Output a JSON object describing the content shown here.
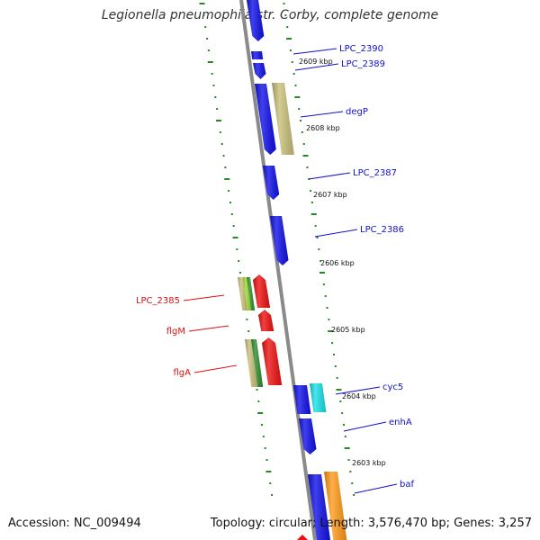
{
  "header": {
    "title": "Legionella pneumophila str. Corby, complete genome"
  },
  "footer": {
    "accession": "Accession: NC_009494",
    "summary": "Topology: circular; Length: 3,576,470 bp; Genes: 3,257"
  },
  "colors": {
    "backbone": "#8c8c8c",
    "tick": "#228b22",
    "gene_blue": "#1010e8",
    "gene_red": "#ee1111",
    "gene_khaki": "#c8c07a",
    "gene_cyan": "#19e0e8",
    "gene_orange": "#ff9a1a",
    "gene_darkgreen": "#2e8b2e",
    "gene_lime": "#9adf2a",
    "label_blue": "#1111cc",
    "label_red": "#dd1111"
  },
  "scale": {
    "unit": "kbp",
    "labels": [
      "2609 kbp",
      "2608 kbp",
      "2607 kbp",
      "2606 kbp",
      "2605 kbp",
      "2604 kbp",
      "2603 kbp"
    ]
  },
  "gene_labels": [
    {
      "name": "LPC_2390",
      "color": "blue"
    },
    {
      "name": "LPC_2389",
      "color": "blue"
    },
    {
      "name": "degP",
      "color": "blue"
    },
    {
      "name": "LPC_2387",
      "color": "blue"
    },
    {
      "name": "LPC_2386",
      "color": "blue"
    },
    {
      "name": "LPC_2385",
      "color": "red"
    },
    {
      "name": "flgM",
      "color": "red"
    },
    {
      "name": "flgA",
      "color": "red"
    },
    {
      "name": "cyc5",
      "color": "blue"
    },
    {
      "name": "enhA",
      "color": "blue"
    },
    {
      "name": "baf",
      "color": "blue"
    }
  ]
}
